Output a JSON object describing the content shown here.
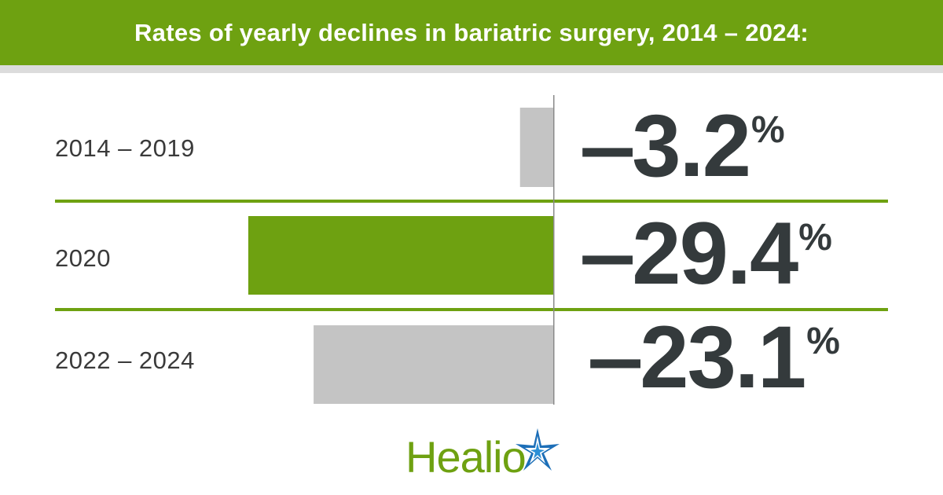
{
  "header": {
    "title": "Rates of yearly declines in bariatric surgery, 2014 – 2024:"
  },
  "colors": {
    "accent": "#6ea111",
    "bar_gray": "#c4c4c4",
    "value_text": "#343a3c",
    "logo_blue": "#1d6fb8"
  },
  "chart_data": {
    "type": "bar",
    "orientation": "horizontal",
    "title": "Rates of yearly declines in bariatric surgery, 2014 – 2024:",
    "categories": [
      "2014 – 2019",
      "2020",
      "2022 – 2024"
    ],
    "values": [
      -3.2,
      -29.4,
      -23.1
    ],
    "value_labels": [
      {
        "sign": "–",
        "number": "3.2",
        "unit": "%"
      },
      {
        "sign": "–",
        "number": "29.4",
        "unit": "%"
      },
      {
        "sign": "–",
        "number": "23.1",
        "unit": "%"
      }
    ],
    "highlight": [
      false,
      true,
      false
    ],
    "xlim": [
      -30,
      0
    ],
    "grid": false,
    "legend": "none"
  },
  "logo": {
    "text": "Healio",
    "icon": "star-icon"
  }
}
